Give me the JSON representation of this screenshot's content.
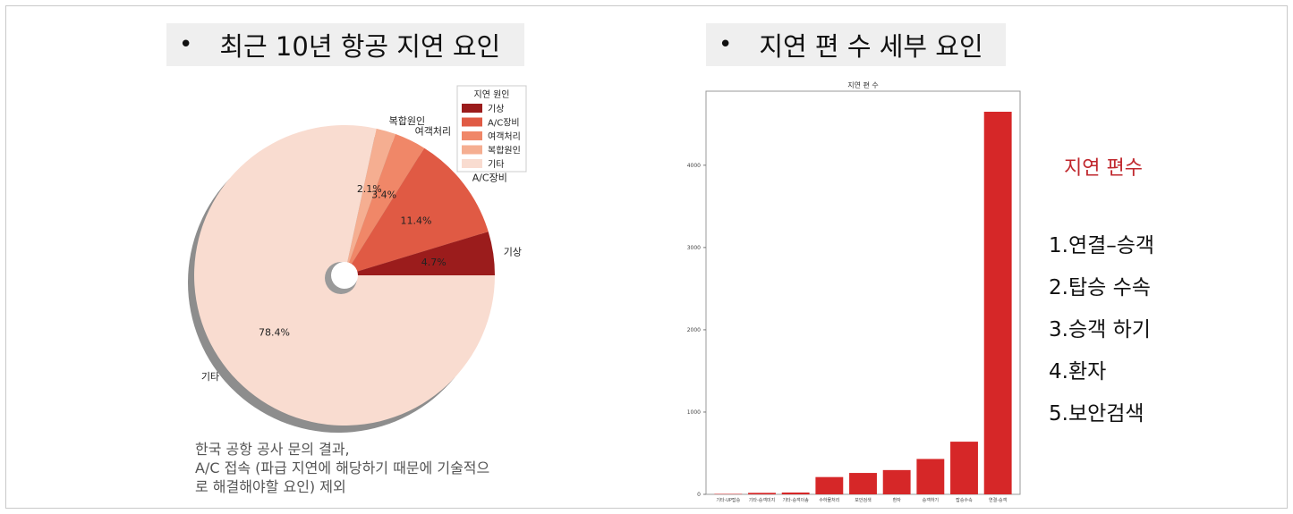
{
  "left_header": {
    "bullet": "•",
    "title": "최근 10년 항공 지연 요인"
  },
  "right_header": {
    "bullet": "•",
    "title": "지연 편 수 세부 요인"
  },
  "note_lines": [
    "한국 공항 공사 문의 결과,",
    "A/C 접속 (파급 지연에 해당하기 때문에 기술적으",
    "로 해결해야할 요인) 제외"
  ],
  "side_panel": {
    "title": "지연 편수",
    "items": [
      "1.연결–승객",
      "2.탑승 수속",
      "3.승객 하기",
      "4.환자",
      "5.보안검색"
    ]
  },
  "chart_data": [
    {
      "type": "pie",
      "title": "",
      "legend_title": "지연 원인",
      "legend_position": "top-right",
      "categories": [
        "기상",
        "A/C장비",
        "여객처리",
        "복합원인",
        "기타"
      ],
      "values": [
        4.7,
        11.4,
        3.4,
        2.1,
        78.4
      ],
      "value_labels": [
        "4.7%",
        "11.4%",
        "3.4%",
        "2.1%",
        "78.4%"
      ],
      "colors": [
        "#9b1c1c",
        "#e05a44",
        "#f08768",
        "#f5ae91",
        "#f9dcd0"
      ],
      "donut_hole": true,
      "shadow": true
    },
    {
      "type": "bar",
      "title": "지연 편 수",
      "xlabel": "",
      "ylabel": "",
      "categories": [
        "기타-UP탑승",
        "기타-승객미지",
        "기타-승객이송",
        "수하물처리",
        "보안검색",
        "환자",
        "승객하기",
        "탑승수속",
        "연결-승객"
      ],
      "values": [
        5,
        18,
        22,
        210,
        260,
        295,
        430,
        640,
        4650
      ],
      "yticks": [
        0,
        1000,
        2000,
        3000,
        4000
      ],
      "ylim": [
        0,
        4900
      ],
      "color": "#d62728"
    }
  ]
}
